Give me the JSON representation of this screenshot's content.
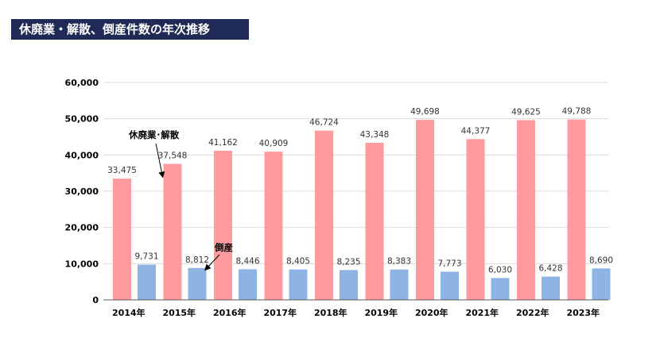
{
  "header": {
    "title": "休廃業・解散、倒産件数の年次推移"
  },
  "chart_data": {
    "type": "bar",
    "categories": [
      "2014年",
      "2015年",
      "2016年",
      "2017年",
      "2018年",
      "2019年",
      "2020年",
      "2021年",
      "2022年",
      "2023年"
    ],
    "series": [
      {
        "name": "休廃業･解散",
        "color": "#ff9b9e",
        "values": [
          33475,
          37548,
          41162,
          40909,
          46724,
          43348,
          49698,
          44377,
          49625,
          49788
        ],
        "labels": [
          "33,475",
          "37,548",
          "41,162",
          "40,909",
          "46,724",
          "43,348",
          "49,698",
          "44,377",
          "49,625",
          "49,788"
        ]
      },
      {
        "name": "倒産",
        "color": "#8db4e2",
        "values": [
          9731,
          8812,
          8446,
          8405,
          8235,
          8383,
          7773,
          6030,
          6428,
          8690
        ],
        "labels": [
          "9,731",
          "8,812",
          "8,446",
          "8,405",
          "8,235",
          "8,383",
          "7,773",
          "6,030",
          "6,428",
          "8,690"
        ]
      }
    ],
    "ylim": [
      0,
      60000
    ],
    "yticks": [
      0,
      10000,
      20000,
      30000,
      40000,
      50000,
      60000
    ],
    "ytick_labels": [
      "0",
      "10,000",
      "20,000",
      "30,000",
      "40,000",
      "50,000",
      "60,000"
    ],
    "grid": true,
    "legend": "none",
    "annotations": [
      {
        "text": "休廃業･解散",
        "series": 0,
        "category": "2015年"
      },
      {
        "text": "倒産",
        "series": 1,
        "category": "2015年"
      }
    ]
  }
}
